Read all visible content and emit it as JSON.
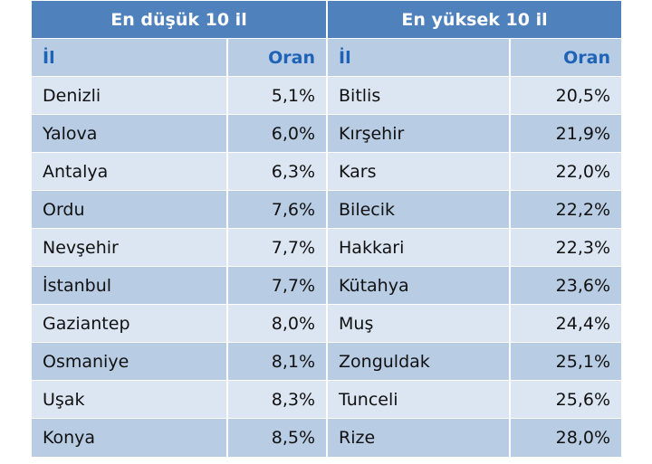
{
  "header": {
    "left_title": "En düşük 10 il",
    "right_title": "En yüksek 10 il"
  },
  "table": {
    "columns": [
      "İl",
      "Oran",
      "İl",
      "Oran"
    ],
    "rows": [
      [
        "Denizli",
        "5,1%",
        "Bitlis",
        "20,5%"
      ],
      [
        "Yalova",
        "6,0%",
        "Kırşehir",
        "21,9%"
      ],
      [
        "Antalya",
        "6,3%",
        "Kars",
        "22,0%"
      ],
      [
        "Ordu",
        "7,6%",
        "Bilecik",
        "22,2%"
      ],
      [
        "Nevşehir",
        "7,7%",
        "Hakkari",
        "22,3%"
      ],
      [
        "İstanbul",
        "7,7%",
        "Kütahya",
        "23,6%"
      ],
      [
        "Gaziantep",
        "8,0%",
        "Muş",
        "24,4%"
      ],
      [
        "Osmaniye",
        "8,1%",
        "Zonguldak",
        "25,1%"
      ],
      [
        "Uşak",
        "8,3%",
        "Tunceli",
        "25,6%"
      ],
      [
        "Konya",
        "8,5%",
        "Rize",
        "28,0%"
      ]
    ]
  }
}
